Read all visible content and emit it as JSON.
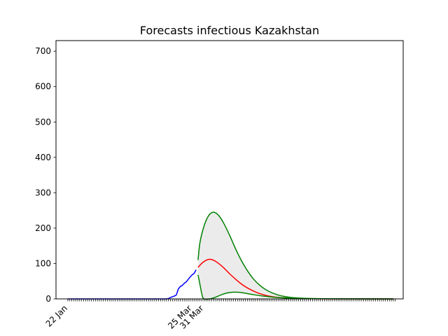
{
  "chart_data": {
    "type": "line",
    "title": "Forecasts infectious Kazakhstan",
    "xlabel": "",
    "ylabel": "",
    "ylim": [
      0,
      730
    ],
    "y_ticks": [
      0,
      100,
      200,
      300,
      400,
      500,
      600,
      700
    ],
    "x_range": [
      "2020-01-16",
      "2020-07-10"
    ],
    "x_tick_labels": [
      {
        "date": "2020-01-22",
        "label": "22 Jan"
      },
      {
        "date": "2020-03-25",
        "label": "25 Mar"
      },
      {
        "date": "2020-03-31",
        "label": "31 Mar"
      }
    ],
    "x_minor_ticks": {
      "start": "2020-01-22",
      "end": "2020-07-06",
      "step_days": 1
    },
    "legend": "none",
    "grid": false,
    "series": [
      {
        "role": "observed",
        "color": "#0000ff",
        "points": [
          [
            "2020-01-22",
            0
          ],
          [
            "2020-03-12",
            0
          ],
          [
            "2020-03-13",
            1
          ],
          [
            "2020-03-14",
            4
          ],
          [
            "2020-03-15",
            6
          ],
          [
            "2020-03-16",
            8
          ],
          [
            "2020-03-17",
            11
          ],
          [
            "2020-03-18",
            28
          ],
          [
            "2020-03-19",
            35
          ],
          [
            "2020-03-20",
            38
          ],
          [
            "2020-03-21",
            44
          ],
          [
            "2020-03-22",
            48
          ],
          [
            "2020-03-23",
            55
          ],
          [
            "2020-03-24",
            62
          ],
          [
            "2020-03-25",
            68
          ],
          [
            "2020-03-26",
            72
          ],
          [
            "2020-03-27",
            82
          ]
        ]
      },
      {
        "role": "forecast-central",
        "color": "#ff0000",
        "points": [
          [
            "2020-03-28",
            89
          ],
          [
            "2020-03-30",
            101
          ],
          [
            "2020-04-01",
            109
          ],
          [
            "2020-04-03",
            112
          ],
          [
            "2020-04-05",
            109
          ],
          [
            "2020-04-07",
            102
          ],
          [
            "2020-04-10",
            88
          ],
          [
            "2020-04-13",
            71
          ],
          [
            "2020-04-16",
            56
          ],
          [
            "2020-04-19",
            42
          ],
          [
            "2020-04-22",
            31
          ],
          [
            "2020-04-26",
            20
          ],
          [
            "2020-04-30",
            12
          ],
          [
            "2020-05-05",
            6
          ],
          [
            "2020-05-12",
            2.5
          ],
          [
            "2020-05-20",
            1
          ],
          [
            "2020-06-01",
            0.3
          ],
          [
            "2020-07-05",
            0
          ]
        ]
      },
      {
        "role": "forecast-upper",
        "color": "#008000",
        "points": [
          [
            "2020-03-28",
            110
          ],
          [
            "2020-03-29",
            160
          ],
          [
            "2020-03-31",
            205
          ],
          [
            "2020-04-02",
            232
          ],
          [
            "2020-04-04",
            244
          ],
          [
            "2020-04-06",
            243
          ],
          [
            "2020-04-08",
            232
          ],
          [
            "2020-04-10",
            214
          ],
          [
            "2020-04-13",
            180
          ],
          [
            "2020-04-16",
            142
          ],
          [
            "2020-04-19",
            108
          ],
          [
            "2020-04-22",
            80
          ],
          [
            "2020-04-25",
            57
          ],
          [
            "2020-04-28",
            40
          ],
          [
            "2020-05-02",
            24
          ],
          [
            "2020-05-07",
            12
          ],
          [
            "2020-05-13",
            5
          ],
          [
            "2020-05-20",
            2
          ],
          [
            "2020-06-01",
            0.5
          ],
          [
            "2020-07-05",
            0
          ]
        ]
      },
      {
        "role": "forecast-lower",
        "color": "#008000",
        "points": [
          [
            "2020-03-28",
            68
          ],
          [
            "2020-03-29",
            40
          ],
          [
            "2020-03-30",
            12
          ],
          [
            "2020-03-31",
            0
          ],
          [
            "2020-04-03",
            0
          ],
          [
            "2020-04-06",
            5
          ],
          [
            "2020-04-09",
            12
          ],
          [
            "2020-04-12",
            17
          ],
          [
            "2020-04-15",
            19
          ],
          [
            "2020-04-18",
            18.5
          ],
          [
            "2020-04-21",
            16
          ],
          [
            "2020-04-25",
            12
          ],
          [
            "2020-04-30",
            8
          ],
          [
            "2020-05-06",
            4.5
          ],
          [
            "2020-05-14",
            2
          ],
          [
            "2020-05-25",
            0.8
          ],
          [
            "2020-06-10",
            0.2
          ],
          [
            "2020-07-05",
            0
          ]
        ]
      }
    ],
    "band": {
      "between": [
        "forecast-upper",
        "forecast-lower"
      ],
      "color": "#ebebeb"
    }
  }
}
